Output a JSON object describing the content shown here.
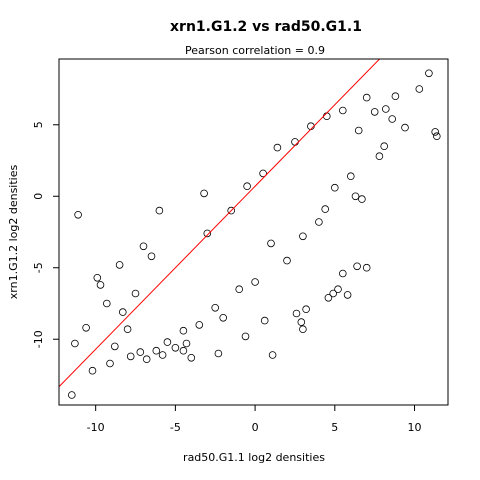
{
  "chart_data": {
    "type": "scatter",
    "title": "xrn1.G1.2 vs rad50.G1.1",
    "subtitle": "Pearson correlation =  0.9",
    "xlabel": "rad50.G1.1 log2 densities",
    "ylabel": "xrn1.G1.2 log2 densities",
    "xlim": [
      -12.3,
      12.1
    ],
    "ylim": [
      -14.6,
      9.6
    ],
    "xticks": [
      -10,
      -5,
      0,
      5,
      10
    ],
    "yticks": [
      -10,
      -5,
      0,
      5
    ],
    "xtick_labels": [
      "-10",
      "-5",
      "0",
      "5",
      "10"
    ],
    "ytick_labels": [
      "-10",
      "-5",
      "0",
      "5"
    ],
    "grid": false,
    "legend": "none",
    "colors": {
      "points": "#000000",
      "fit_line": "#ff0000",
      "axes": "#000000",
      "background": "#ffffff"
    },
    "fit_line": {
      "slope": 1.14,
      "intercept": 0.7
    },
    "points": [
      [
        -11.5,
        -13.9
      ],
      [
        -11.1,
        -1.3
      ],
      [
        -11.3,
        -10.3
      ],
      [
        -10.6,
        -9.2
      ],
      [
        -10.2,
        -12.2
      ],
      [
        -9.9,
        -5.7
      ],
      [
        -9.7,
        -6.2
      ],
      [
        -9.3,
        -7.5
      ],
      [
        -9.1,
        -11.7
      ],
      [
        -8.8,
        -10.5
      ],
      [
        -8.5,
        -4.8
      ],
      [
        -8.3,
        -8.1
      ],
      [
        -8.0,
        -9.3
      ],
      [
        -7.8,
        -11.2
      ],
      [
        -7.5,
        -6.8
      ],
      [
        -7.2,
        -10.9
      ],
      [
        -7.0,
        -3.5
      ],
      [
        -6.8,
        -11.4
      ],
      [
        -6.5,
        -4.2
      ],
      [
        -6.2,
        -10.8
      ],
      [
        -5.8,
        -11.1
      ],
      [
        -5.5,
        -10.2
      ],
      [
        -5.0,
        -10.6
      ],
      [
        -4.5,
        -9.4
      ],
      [
        -4.3,
        -10.3
      ],
      [
        -4.0,
        -11.3
      ],
      [
        -3.5,
        -9.0
      ],
      [
        -3.0,
        -2.6
      ],
      [
        -2.5,
        -7.8
      ],
      [
        -2.0,
        -8.5
      ],
      [
        -1.5,
        -1.0
      ],
      [
        -1.0,
        -6.5
      ],
      [
        -0.5,
        0.7
      ],
      [
        0.0,
        -6.0
      ],
      [
        0.5,
        1.6
      ],
      [
        1.0,
        -3.3
      ],
      [
        1.4,
        3.4
      ],
      [
        2.0,
        -4.5
      ],
      [
        2.5,
        3.8
      ],
      [
        3.0,
        -2.8
      ],
      [
        3.5,
        4.9
      ],
      [
        4.0,
        -1.8
      ],
      [
        4.5,
        5.6
      ],
      [
        5.0,
        0.6
      ],
      [
        5.5,
        6.0
      ],
      [
        6.0,
        1.4
      ],
      [
        6.5,
        4.6
      ],
      [
        7.0,
        6.9
      ],
      [
        7.5,
        5.9
      ],
      [
        8.2,
        6.1
      ],
      [
        8.6,
        5.4
      ],
      [
        8.8,
        7.0
      ],
      [
        9.4,
        4.8
      ],
      [
        10.3,
        7.5
      ],
      [
        10.9,
        8.6
      ],
      [
        11.3,
        4.5
      ],
      [
        11.4,
        4.2
      ],
      [
        4.6,
        -7.1
      ],
      [
        4.9,
        -6.8
      ],
      [
        5.2,
        -6.5
      ],
      [
        5.5,
        -5.4
      ],
      [
        5.8,
        -6.9
      ],
      [
        6.4,
        -4.9
      ],
      [
        7.0,
        -5.0
      ],
      [
        2.6,
        -8.2
      ],
      [
        2.9,
        -8.8
      ],
      [
        3.0,
        -9.3
      ],
      [
        3.2,
        -7.9
      ],
      [
        1.1,
        -11.1
      ],
      [
        -4.5,
        -10.8
      ],
      [
        -2.3,
        -11.0
      ],
      [
        -0.6,
        -9.8
      ],
      [
        0.6,
        -8.7
      ],
      [
        6.7,
        -0.2
      ],
      [
        6.3,
        0.0
      ],
      [
        4.4,
        -0.9
      ],
      [
        7.8,
        2.8
      ],
      [
        8.1,
        3.5
      ],
      [
        -3.2,
        0.2
      ],
      [
        -6.0,
        -1.0
      ]
    ]
  }
}
